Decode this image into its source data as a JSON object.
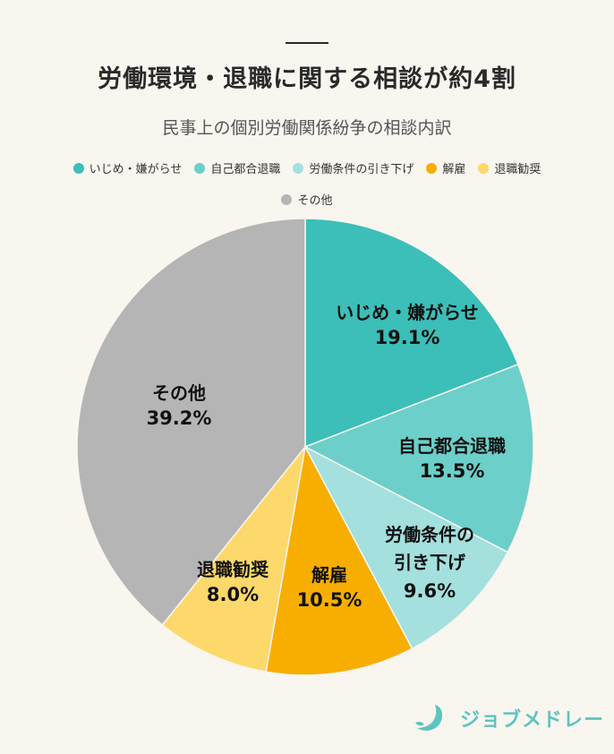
{
  "header": {
    "title": "労働環境・退職に関する相談が約4割",
    "subtitle": "民事上の個別労働関係紛争の相談内訳"
  },
  "legend": [
    {
      "label": "いじめ・嫌がらせ",
      "color": "#3bbfb8"
    },
    {
      "label": "自己都合退職",
      "color": "#6dcfca"
    },
    {
      "label": "労働条件の引き下げ",
      "color": "#a3e0de"
    },
    {
      "label": "解雇",
      "color": "#f7ae00"
    },
    {
      "label": "退職勧奨",
      "color": "#fdd86a"
    },
    {
      "label": "その他",
      "color": "#b5b5b5"
    }
  ],
  "slices": [
    {
      "name1": "いじめ・嫌がらせ",
      "name2": "",
      "pct": "19.1%"
    },
    {
      "name1": "自己都合退職",
      "name2": "",
      "pct": "13.5%"
    },
    {
      "name1": "労働条件の",
      "name2": "引き下げ",
      "pct": "9.6%"
    },
    {
      "name1": "解雇",
      "name2": "",
      "pct": "10.5%"
    },
    {
      "name1": "退職勧奨",
      "name2": "",
      "pct": "8.0%"
    },
    {
      "name1": "その他",
      "name2": "",
      "pct": "39.2%"
    }
  ],
  "brand": {
    "name": "ジョブメドレー",
    "color": "#5ec4bf"
  },
  "chart_data": {
    "type": "pie",
    "title": "労働環境・退職に関する相談が約4割",
    "subtitle": "民事上の個別労働関係紛争の相談内訳",
    "categories": [
      "いじめ・嫌がらせ",
      "自己都合退職",
      "労働条件の引き下げ",
      "解雇",
      "退職勧奨",
      "その他"
    ],
    "values": [
      19.1,
      13.5,
      9.6,
      10.5,
      8.0,
      39.2
    ],
    "colors": [
      "#3bbfb8",
      "#6dcfca",
      "#a3e0de",
      "#f7ae00",
      "#fdd86a",
      "#b5b5b5"
    ],
    "unit": "%",
    "legend_position": "top",
    "start_angle": "12 o'clock, clockwise"
  }
}
